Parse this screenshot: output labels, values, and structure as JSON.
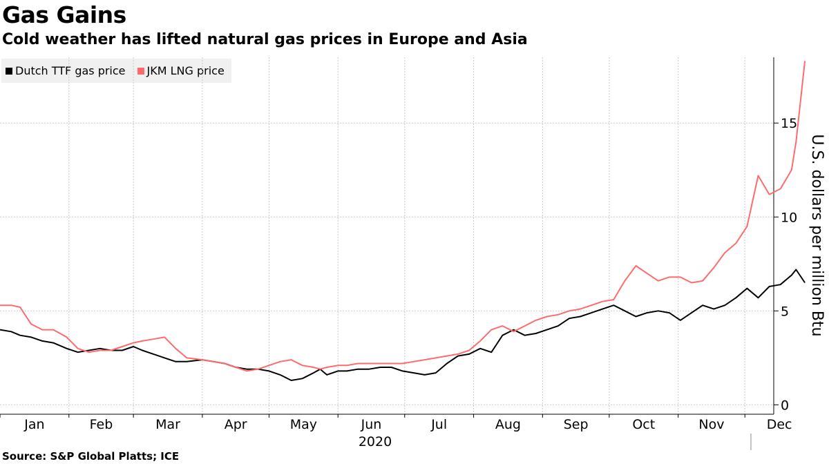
{
  "title": "Gas Gains",
  "subtitle": "Cold weather has lifted natural gas prices in Europe and Asia",
  "source": "Source: S&P Global Platts; ICE",
  "chart_data": {
    "type": "line",
    "title": "Gas Gains",
    "subtitle": "Cold weather has lifted natural gas prices in Europe and Asia",
    "ylabel": "U.S. dollars per million Btu",
    "ylim": [
      -0.5,
      18.5
    ],
    "y_ticks": [
      0,
      5,
      10,
      15
    ],
    "y_axis_side": "right",
    "x_year_label": "2020",
    "x_ticks": [
      "Jan",
      "Feb",
      "Mar",
      "Apr",
      "May",
      "Jun",
      "Jul",
      "Aug",
      "Sep",
      "Oct",
      "Nov",
      "Dec"
    ],
    "grid": true,
    "legend_position": "top-left",
    "series": [
      {
        "name": "Dutch TTF gas price",
        "color": "#000000",
        "x": [
          "2020-01-01",
          "2020-01-06",
          "2020-01-10",
          "2020-01-15",
          "2020-01-20",
          "2020-01-25",
          "2020-01-31",
          "2020-02-05",
          "2020-02-10",
          "2020-02-15",
          "2020-02-20",
          "2020-02-25",
          "2020-03-01",
          "2020-03-05",
          "2020-03-10",
          "2020-03-15",
          "2020-03-20",
          "2020-03-25",
          "2020-04-01",
          "2020-04-06",
          "2020-04-11",
          "2020-04-16",
          "2020-04-21",
          "2020-04-26",
          "2020-05-01",
          "2020-05-06",
          "2020-05-11",
          "2020-05-16",
          "2020-05-21",
          "2020-05-24",
          "2020-05-27",
          "2020-06-01",
          "2020-06-05",
          "2020-06-10",
          "2020-06-15",
          "2020-06-20",
          "2020-06-25",
          "2020-06-30",
          "2020-07-05",
          "2020-07-10",
          "2020-07-15",
          "2020-07-20",
          "2020-07-25",
          "2020-07-30",
          "2020-08-04",
          "2020-08-09",
          "2020-08-14",
          "2020-08-19",
          "2020-08-24",
          "2020-08-29",
          "2020-09-03",
          "2020-09-08",
          "2020-09-13",
          "2020-09-18",
          "2020-09-23",
          "2020-09-28",
          "2020-10-03",
          "2020-10-08",
          "2020-10-13",
          "2020-10-18",
          "2020-10-23",
          "2020-10-28",
          "2020-11-02",
          "2020-11-07",
          "2020-11-12",
          "2020-11-17",
          "2020-11-22",
          "2020-11-27",
          "2020-12-02",
          "2020-12-07",
          "2020-12-12",
          "2020-12-17",
          "2020-12-22",
          "2020-12-24",
          "2020-12-28"
        ],
        "values": [
          4.0,
          3.9,
          3.7,
          3.6,
          3.4,
          3.3,
          3.0,
          2.8,
          2.9,
          3.0,
          2.9,
          2.9,
          3.1,
          2.9,
          2.7,
          2.5,
          2.3,
          2.3,
          2.4,
          2.3,
          2.2,
          2.0,
          1.9,
          1.9,
          1.8,
          1.6,
          1.3,
          1.4,
          1.7,
          1.9,
          1.6,
          1.8,
          1.8,
          1.9,
          1.9,
          2.0,
          2.0,
          1.8,
          1.7,
          1.6,
          1.7,
          2.2,
          2.6,
          2.7,
          3.0,
          2.8,
          3.7,
          4.0,
          3.7,
          3.8,
          4.0,
          4.2,
          4.6,
          4.7,
          4.9,
          5.1,
          5.3,
          5.0,
          4.7,
          4.9,
          5.0,
          4.9,
          4.5,
          4.9,
          5.3,
          5.1,
          5.3,
          5.7,
          6.2,
          5.7,
          6.3,
          6.4,
          6.9,
          7.2,
          6.5
        ]
      },
      {
        "name": "JKM LNG price",
        "color": "#ff6b6b",
        "x": [
          "2020-01-01",
          "2020-01-06",
          "2020-01-10",
          "2020-01-15",
          "2020-01-20",
          "2020-01-25",
          "2020-01-31",
          "2020-02-05",
          "2020-02-10",
          "2020-02-15",
          "2020-02-20",
          "2020-02-25",
          "2020-03-01",
          "2020-03-05",
          "2020-03-10",
          "2020-03-15",
          "2020-03-20",
          "2020-03-25",
          "2020-04-01",
          "2020-04-06",
          "2020-04-11",
          "2020-04-16",
          "2020-04-21",
          "2020-04-26",
          "2020-05-01",
          "2020-05-06",
          "2020-05-11",
          "2020-05-16",
          "2020-05-21",
          "2020-05-24",
          "2020-05-27",
          "2020-06-01",
          "2020-06-05",
          "2020-06-10",
          "2020-06-15",
          "2020-06-20",
          "2020-06-25",
          "2020-06-30",
          "2020-07-05",
          "2020-07-10",
          "2020-07-15",
          "2020-07-20",
          "2020-07-25",
          "2020-07-30",
          "2020-08-04",
          "2020-08-09",
          "2020-08-14",
          "2020-08-19",
          "2020-08-24",
          "2020-08-29",
          "2020-09-03",
          "2020-09-08",
          "2020-09-13",
          "2020-09-18",
          "2020-09-23",
          "2020-09-28",
          "2020-10-03",
          "2020-10-08",
          "2020-10-13",
          "2020-10-18",
          "2020-10-23",
          "2020-10-28",
          "2020-11-02",
          "2020-11-07",
          "2020-11-12",
          "2020-11-17",
          "2020-11-22",
          "2020-11-27",
          "2020-12-02",
          "2020-12-07",
          "2020-12-12",
          "2020-12-17",
          "2020-12-22",
          "2020-12-24",
          "2020-12-28"
        ],
        "values": [
          5.3,
          5.3,
          5.2,
          4.3,
          4.0,
          4.0,
          3.6,
          3.0,
          2.8,
          2.9,
          2.9,
          3.1,
          3.3,
          3.4,
          3.5,
          3.6,
          3.0,
          2.5,
          2.4,
          2.3,
          2.2,
          2.0,
          1.8,
          1.9,
          2.1,
          2.3,
          2.4,
          2.1,
          2.0,
          1.9,
          2.0,
          2.1,
          2.1,
          2.2,
          2.2,
          2.2,
          2.2,
          2.2,
          2.3,
          2.4,
          2.5,
          2.6,
          2.7,
          2.9,
          3.4,
          4.0,
          4.2,
          3.9,
          4.2,
          4.5,
          4.7,
          4.8,
          5.0,
          5.1,
          5.3,
          5.5,
          5.6,
          6.6,
          7.4,
          7.0,
          6.6,
          6.8,
          6.8,
          6.5,
          6.6,
          7.3,
          8.1,
          8.6,
          9.5,
          12.2,
          11.2,
          11.5,
          12.5,
          14.0,
          18.3
        ]
      }
    ]
  }
}
